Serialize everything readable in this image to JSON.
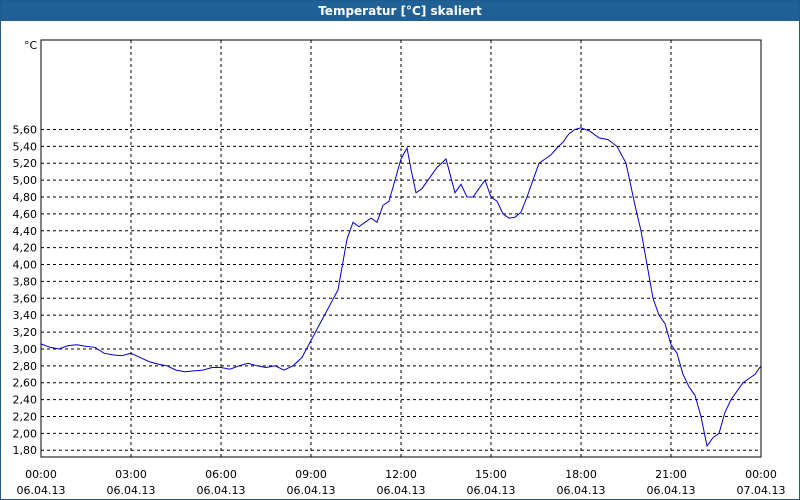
{
  "window": {
    "title": "Temperatur [°C] skaliert"
  },
  "chart_data": {
    "type": "line",
    "title": "Temperatur [°C] skaliert",
    "ylabel": "°C",
    "xlabel": "",
    "ylim": [
      1.72,
      6.66
    ],
    "yticks": [
      "1,80",
      "2,00",
      "2,20",
      "2,40",
      "2,60",
      "2,80",
      "3,00",
      "3,20",
      "3,40",
      "3,60",
      "3,80",
      "4,00",
      "4,20",
      "4,40",
      "4,60",
      "4,80",
      "5,00",
      "5,20",
      "5,40",
      "5,60"
    ],
    "xticks": [
      {
        "time": "00:00",
        "date": "06.04.13"
      },
      {
        "time": "03:00",
        "date": "06.04.13"
      },
      {
        "time": "06:00",
        "date": "06.04.13"
      },
      {
        "time": "09:00",
        "date": "06.04.13"
      },
      {
        "time": "12:00",
        "date": "06.04.13"
      },
      {
        "time": "15:00",
        "date": "06.04.13"
      },
      {
        "time": "18:00",
        "date": "06.04.13"
      },
      {
        "time": "21:00",
        "date": "06.04.13"
      },
      {
        "time": "00:00",
        "date": "07.04.13"
      }
    ],
    "grid": true,
    "series": [
      {
        "color": "#0000cc",
        "x_hours": [
          0,
          0.3,
          0.6,
          0.9,
          1.2,
          1.5,
          1.8,
          2.1,
          2.4,
          2.7,
          3.0,
          3.3,
          3.6,
          3.9,
          4.2,
          4.5,
          4.8,
          5.1,
          5.4,
          5.7,
          6.0,
          6.3,
          6.6,
          6.9,
          7.2,
          7.5,
          7.8,
          8.1,
          8.4,
          8.7,
          9.0,
          9.3,
          9.6,
          9.9,
          10.2,
          10.4,
          10.6,
          10.8,
          11.0,
          11.2,
          11.4,
          11.6,
          11.8,
          12.0,
          12.2,
          12.35,
          12.5,
          12.7,
          12.9,
          13.2,
          13.5,
          13.8,
          14.0,
          14.2,
          14.4,
          14.6,
          14.8,
          15.0,
          15.2,
          15.4,
          15.6,
          15.8,
          16.0,
          16.2,
          16.4,
          16.6,
          16.8,
          17.0,
          17.2,
          17.4,
          17.6,
          17.8,
          18.0,
          18.3,
          18.6,
          18.9,
          19.2,
          19.5,
          19.8,
          20.0,
          20.2,
          20.4,
          20.6,
          20.8,
          21.0,
          21.2,
          21.4,
          21.6,
          21.8,
          22.0,
          22.2,
          22.4,
          22.6,
          22.8,
          23.0,
          23.2,
          23.4,
          23.6,
          23.8,
          24.0
        ],
        "values": [
          3.06,
          3.02,
          3.0,
          3.04,
          3.05,
          3.03,
          3.02,
          2.95,
          2.93,
          2.92,
          2.95,
          2.9,
          2.85,
          2.82,
          2.8,
          2.75,
          2.73,
          2.74,
          2.75,
          2.78,
          2.78,
          2.76,
          2.8,
          2.83,
          2.8,
          2.78,
          2.8,
          2.75,
          2.8,
          2.9,
          3.1,
          3.3,
          3.5,
          3.7,
          4.3,
          4.5,
          4.45,
          4.5,
          4.55,
          4.5,
          4.7,
          4.75,
          5.0,
          5.25,
          5.38,
          5.1,
          4.85,
          4.9,
          5.0,
          5.15,
          5.25,
          4.85,
          4.95,
          4.8,
          4.8,
          4.9,
          5.0,
          4.8,
          4.75,
          4.6,
          4.55,
          4.56,
          4.62,
          4.8,
          5.0,
          5.2,
          5.25,
          5.3,
          5.38,
          5.45,
          5.55,
          5.6,
          5.62,
          5.58,
          5.5,
          5.48,
          5.4,
          5.2,
          4.7,
          4.4,
          4.0,
          3.6,
          3.4,
          3.3,
          3.05,
          2.95,
          2.7,
          2.55,
          2.45,
          2.2,
          1.85,
          1.95,
          2.0,
          2.25,
          2.4,
          2.5,
          2.6,
          2.65,
          2.7,
          2.8
        ]
      }
    ]
  }
}
